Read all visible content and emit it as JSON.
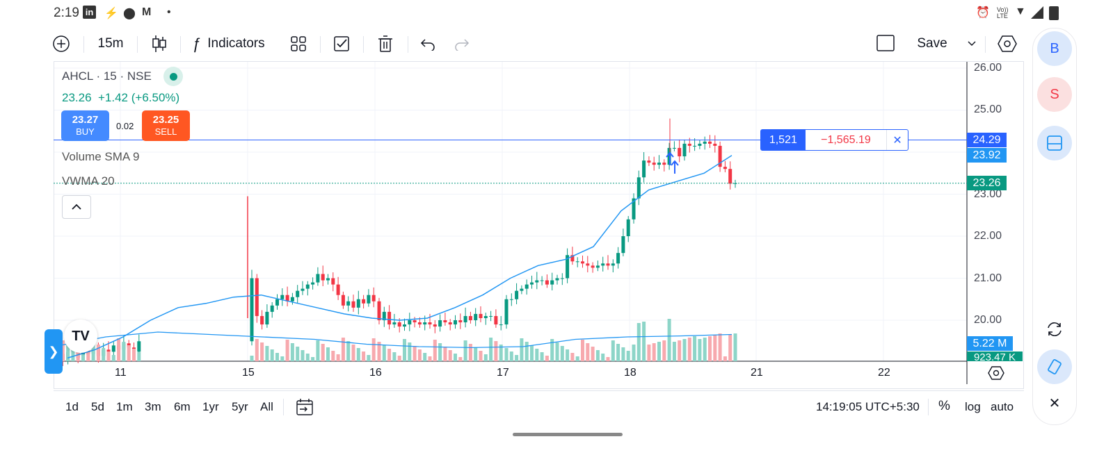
{
  "status_bar": {
    "time": "2:19",
    "icons_left": [
      "linkedin-icon",
      "bolt-icon",
      "location-icon",
      "gmail-icon",
      "dot-icon"
    ],
    "icons_right": [
      "alarm-icon",
      "volte-icon",
      "wifi-icon",
      "signal-icon",
      "battery-icon"
    ],
    "volte_text": "Vo)) LTE"
  },
  "toolbar": {
    "add_icon": "plus-circle-icon",
    "interval": "15m",
    "chart_type_icon": "candles-icon",
    "indicators_label": "Indicators",
    "layout_icon": "grid-icon",
    "checkbox_icon": "checkbox-icon",
    "trash_icon": "trash-icon",
    "undo_icon": "undo-icon",
    "redo_icon": "redo-icon",
    "square_icon": "square-icon",
    "save_label": "Save",
    "settings_icon": "hexagon-icon"
  },
  "legend": {
    "symbol": "AHCL · 15 · NSE",
    "last_price": "23.26",
    "change": "+1.42 (+6.50%)",
    "buy_price": "23.27",
    "buy_label": "BUY",
    "sell_price": "23.25",
    "sell_label": "SELL",
    "spread": "0.02",
    "study_volume": "Volume SMA 9",
    "study_vwma": "VWMA 20",
    "colors": {
      "up": "#089981",
      "down": "#f23645",
      "buy": "#2962ff",
      "sell": "#ff5722",
      "vwma": "#2196f3"
    }
  },
  "order_line": {
    "qty": "1,521",
    "pnl": "−1,565.19",
    "close_icon": "close-icon",
    "price": "24.29"
  },
  "price_axis": {
    "ticks": [
      "26.00",
      "25.00",
      "23.00",
      "22.00",
      "21.00",
      "20.00"
    ],
    "vwma_tag": "23.92",
    "last_tag": "23.26",
    "volume_tag": "5.22 M",
    "volume_sma_tag": "923.47 K"
  },
  "time_axis": {
    "ticks": [
      "11",
      "15",
      "16",
      "17",
      "18",
      "21",
      "22"
    ],
    "settings_icon": "hexagon-icon"
  },
  "side_panel": {
    "avatar_b": "B",
    "avatar_s": "S",
    "layout_icon": "panel-icon",
    "refresh_icon": "refresh-icon",
    "rotate_icon": "rotate-icon",
    "close_icon": "close-icon"
  },
  "bottom_bar": {
    "ranges": [
      "1d",
      "5d",
      "1m",
      "3m",
      "6m",
      "1yr",
      "5yr",
      "All"
    ],
    "goto_icon": "calendar-goto-icon",
    "clock": "14:19:05 UTC+5:30",
    "percent_label": "%",
    "log_label": "log",
    "auto_label": "auto"
  },
  "chart_data": {
    "type": "candlestick",
    "symbol": "AHCL",
    "exchange": "NSE",
    "interval": "15",
    "ylim": [
      19.0,
      26.2
    ],
    "x_ticks": [
      "11",
      "15",
      "16",
      "17",
      "18",
      "21",
      "22"
    ],
    "sessions": [
      {
        "day": "11",
        "closes": [
          19.2,
          19.05,
          19.25,
          19.4,
          19.1,
          19.3,
          19.2,
          19.35,
          19.15,
          19.3,
          19.25,
          19.4,
          19.3,
          19.45,
          19.35,
          19.25,
          19.5
        ]
      },
      {
        "day": "15",
        "closes": [
          21.0,
          20.1,
          19.9,
          20.2,
          20.35,
          20.5,
          20.6,
          20.45,
          20.55,
          20.7,
          20.75,
          20.85,
          20.9,
          21.1,
          20.95,
          21.0,
          20.85,
          20.6,
          20.35,
          20.45,
          20.3,
          20.5,
          20.4,
          20.6,
          20.45
        ]
      },
      {
        "day": "16",
        "closes": [
          20.0,
          20.2,
          19.9,
          19.95,
          19.85,
          19.9,
          20.0,
          19.95,
          19.9,
          19.95,
          19.9,
          19.85,
          20.0,
          19.95,
          19.9,
          20.0,
          19.95,
          20.1,
          20.0,
          20.15,
          20.05,
          20.1,
          20.1,
          19.9,
          19.9
        ]
      },
      {
        "day": "17",
        "closes": [
          20.5,
          20.5,
          20.7,
          20.75,
          20.85,
          20.9,
          20.95,
          20.95,
          20.85,
          20.95,
          21.0,
          21.0,
          21.55,
          21.4,
          21.4,
          21.35,
          21.3,
          21.25,
          21.3,
          21.35,
          21.3,
          21.35,
          21.6,
          22.0,
          22.4
        ]
      },
      {
        "day": "18",
        "closes": [
          22.9,
          23.4,
          23.8,
          23.75,
          23.7,
          23.75,
          23.7,
          24.1,
          24.1,
          23.9,
          24.2,
          24.15,
          24.15,
          24.2,
          24.25,
          24.2,
          24.15,
          23.65,
          23.6,
          23.25,
          23.26
        ]
      }
    ],
    "vwma_20": [
      19.1,
      19.3,
      19.6,
      20.0,
      20.3,
      20.4,
      20.55,
      20.6,
      20.45,
      20.3,
      20.15,
      20.05,
      20.0,
      20.05,
      20.3,
      20.6,
      21.0,
      21.3,
      21.45,
      21.75,
      22.6,
      23.1,
      23.3,
      23.5,
      23.92
    ],
    "volume_sma_9": [
      0.3,
      0.5,
      0.6,
      0.55,
      0.5,
      0.45,
      0.35,
      0.3,
      0.28,
      0.3,
      0.45,
      0.5,
      0.52,
      0.55
    ],
    "last_price": 23.26,
    "order_price": 24.29
  }
}
